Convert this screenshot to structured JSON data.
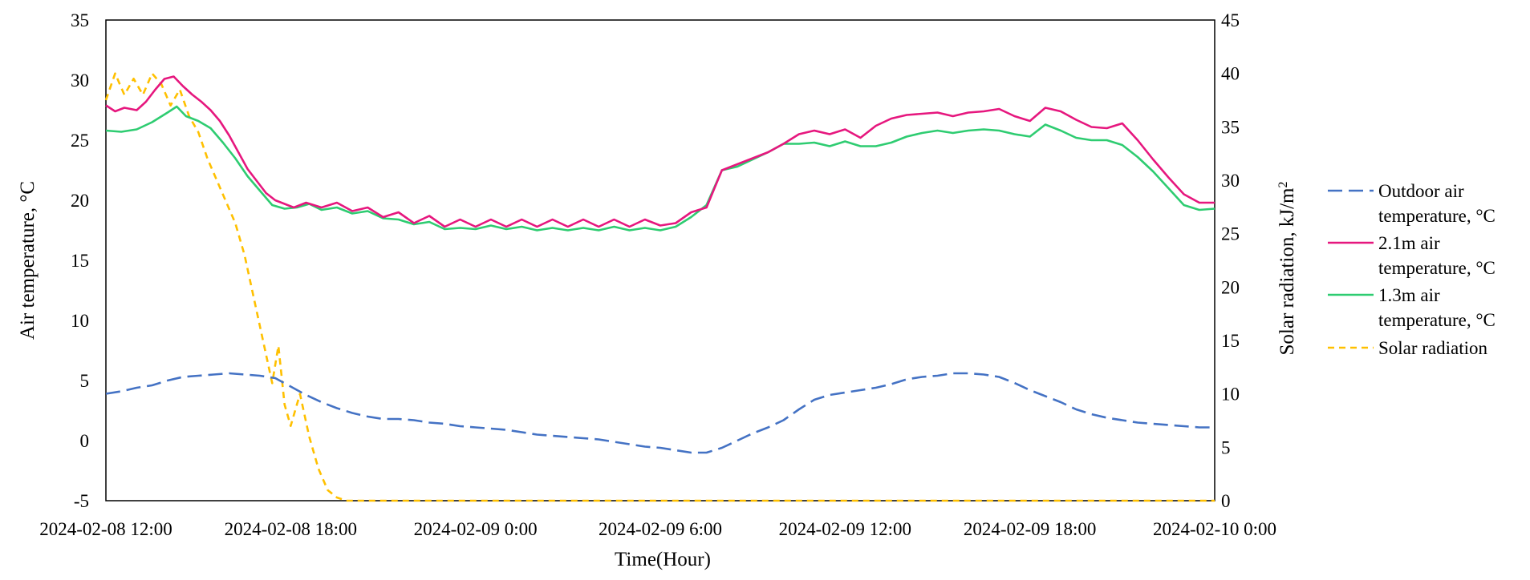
{
  "chart_data": {
    "type": "line",
    "xlabel": "Time(Hour)",
    "ylabel_left": "Air temperature, °C",
    "ylabel_right_prefix": "Solar radiation, kJ/m",
    "ylabel_right_sup": "2",
    "ylim_left": [
      -5,
      35
    ],
    "ylim_right": [
      0,
      45
    ],
    "xlim_hours": [
      0,
      36
    ],
    "x_ticks": [
      "2024-02-08 12:00",
      "2024-02-08 18:00",
      "2024-02-09 0:00",
      "2024-02-09 6:00",
      "2024-02-09 12:00",
      "2024-02-09 18:00",
      "2024-02-10 0:00"
    ],
    "y_ticks_left": [
      "35",
      "30",
      "25",
      "20",
      "15",
      "10",
      "5",
      "0",
      "-5"
    ],
    "y_ticks_right": [
      "45",
      "40",
      "35",
      "30",
      "25",
      "20",
      "15",
      "10",
      "5",
      "0"
    ],
    "legend_position": "right",
    "series": [
      {
        "name_lines": [
          "Outdoor air",
          "temperature, °C"
        ],
        "axis": "left",
        "color": "#4472C4",
        "style": "long-dash",
        "points": [
          [
            0,
            3.9
          ],
          [
            0.5,
            4.1
          ],
          [
            1,
            4.4
          ],
          [
            1.5,
            4.6
          ],
          [
            2,
            5.0
          ],
          [
            2.5,
            5.3
          ],
          [
            3,
            5.4
          ],
          [
            3.5,
            5.5
          ],
          [
            4,
            5.6
          ],
          [
            4.5,
            5.5
          ],
          [
            5,
            5.4
          ],
          [
            5.5,
            5.2
          ],
          [
            6,
            4.5
          ],
          [
            6.5,
            3.8
          ],
          [
            7,
            3.2
          ],
          [
            7.5,
            2.7
          ],
          [
            8,
            2.3
          ],
          [
            8.5,
            2.0
          ],
          [
            9,
            1.8
          ],
          [
            9.5,
            1.8
          ],
          [
            10,
            1.7
          ],
          [
            10.5,
            1.5
          ],
          [
            11,
            1.4
          ],
          [
            11.5,
            1.2
          ],
          [
            12,
            1.1
          ],
          [
            12.5,
            1.0
          ],
          [
            13,
            0.9
          ],
          [
            13.5,
            0.7
          ],
          [
            14,
            0.5
          ],
          [
            14.5,
            0.4
          ],
          [
            15,
            0.3
          ],
          [
            15.5,
            0.2
          ],
          [
            16,
            0.1
          ],
          [
            16.5,
            -0.1
          ],
          [
            17,
            -0.3
          ],
          [
            17.5,
            -0.5
          ],
          [
            18,
            -0.6
          ],
          [
            18.5,
            -0.8
          ],
          [
            19,
            -1.0
          ],
          [
            19.5,
            -1.0
          ],
          [
            20,
            -0.6
          ],
          [
            20.5,
            0.0
          ],
          [
            21,
            0.6
          ],
          [
            21.5,
            1.1
          ],
          [
            22,
            1.7
          ],
          [
            22.5,
            2.6
          ],
          [
            23,
            3.4
          ],
          [
            23.5,
            3.8
          ],
          [
            24,
            4.0
          ],
          [
            24.5,
            4.2
          ],
          [
            25,
            4.4
          ],
          [
            25.5,
            4.7
          ],
          [
            26,
            5.1
          ],
          [
            26.5,
            5.3
          ],
          [
            27,
            5.4
          ],
          [
            27.5,
            5.6
          ],
          [
            28,
            5.6
          ],
          [
            28.5,
            5.5
          ],
          [
            29,
            5.3
          ],
          [
            29.5,
            4.8
          ],
          [
            30,
            4.2
          ],
          [
            30.5,
            3.7
          ],
          [
            31,
            3.2
          ],
          [
            31.5,
            2.6
          ],
          [
            32,
            2.2
          ],
          [
            32.5,
            1.9
          ],
          [
            33,
            1.7
          ],
          [
            33.5,
            1.5
          ],
          [
            34,
            1.4
          ],
          [
            34.5,
            1.3
          ],
          [
            35,
            1.2
          ],
          [
            35.5,
            1.1
          ],
          [
            36,
            1.1
          ]
        ]
      },
      {
        "name_lines": [
          "2.1m air",
          "temperature, °C"
        ],
        "axis": "left",
        "color": "#E6177E",
        "style": "solid",
        "points": [
          [
            0,
            27.9
          ],
          [
            0.3,
            27.4
          ],
          [
            0.6,
            27.7
          ],
          [
            1,
            27.5
          ],
          [
            1.3,
            28.2
          ],
          [
            1.6,
            29.2
          ],
          [
            1.9,
            30.1
          ],
          [
            2.2,
            30.3
          ],
          [
            2.5,
            29.5
          ],
          [
            2.8,
            28.8
          ],
          [
            3.1,
            28.2
          ],
          [
            3.4,
            27.5
          ],
          [
            3.7,
            26.6
          ],
          [
            4,
            25.4
          ],
          [
            4.3,
            24.0
          ],
          [
            4.6,
            22.6
          ],
          [
            4.9,
            21.6
          ],
          [
            5.2,
            20.6
          ],
          [
            5.5,
            20.0
          ],
          [
            5.8,
            19.7
          ],
          [
            6.1,
            19.4
          ],
          [
            6.5,
            19.8
          ],
          [
            7,
            19.4
          ],
          [
            7.5,
            19.8
          ],
          [
            8,
            19.1
          ],
          [
            8.5,
            19.4
          ],
          [
            9,
            18.6
          ],
          [
            9.5,
            19.0
          ],
          [
            10,
            18.1
          ],
          [
            10.5,
            18.7
          ],
          [
            11,
            17.8
          ],
          [
            11.5,
            18.4
          ],
          [
            12,
            17.8
          ],
          [
            12.5,
            18.4
          ],
          [
            13,
            17.8
          ],
          [
            13.5,
            18.4
          ],
          [
            14,
            17.8
          ],
          [
            14.5,
            18.4
          ],
          [
            15,
            17.8
          ],
          [
            15.5,
            18.4
          ],
          [
            16,
            17.8
          ],
          [
            16.5,
            18.4
          ],
          [
            17,
            17.8
          ],
          [
            17.5,
            18.4
          ],
          [
            18,
            17.9
          ],
          [
            18.5,
            18.1
          ],
          [
            19,
            19.0
          ],
          [
            19.5,
            19.4
          ],
          [
            20,
            22.5
          ],
          [
            20.5,
            23.0
          ],
          [
            21,
            23.5
          ],
          [
            21.5,
            24.0
          ],
          [
            22,
            24.7
          ],
          [
            22.5,
            25.5
          ],
          [
            23,
            25.8
          ],
          [
            23.5,
            25.5
          ],
          [
            24,
            25.9
          ],
          [
            24.5,
            25.2
          ],
          [
            25,
            26.2
          ],
          [
            25.5,
            26.8
          ],
          [
            26,
            27.1
          ],
          [
            26.5,
            27.2
          ],
          [
            27,
            27.3
          ],
          [
            27.5,
            27.0
          ],
          [
            28,
            27.3
          ],
          [
            28.5,
            27.4
          ],
          [
            29,
            27.6
          ],
          [
            29.5,
            27.0
          ],
          [
            30,
            26.6
          ],
          [
            30.5,
            27.7
          ],
          [
            31,
            27.4
          ],
          [
            31.5,
            26.7
          ],
          [
            32,
            26.1
          ],
          [
            32.5,
            26.0
          ],
          [
            33,
            26.4
          ],
          [
            33.5,
            25.0
          ],
          [
            34,
            23.4
          ],
          [
            34.5,
            21.9
          ],
          [
            35,
            20.5
          ],
          [
            35.5,
            19.8
          ],
          [
            36,
            19.8
          ]
        ]
      },
      {
        "name_lines": [
          "1.3m air",
          "temperature, °C"
        ],
        "axis": "left",
        "color": "#2ECC71",
        "style": "solid",
        "points": [
          [
            0,
            25.8
          ],
          [
            0.5,
            25.7
          ],
          [
            1,
            25.9
          ],
          [
            1.5,
            26.5
          ],
          [
            2,
            27.3
          ],
          [
            2.3,
            27.8
          ],
          [
            2.6,
            27.0
          ],
          [
            3,
            26.6
          ],
          [
            3.4,
            26.0
          ],
          [
            3.8,
            24.8
          ],
          [
            4.2,
            23.5
          ],
          [
            4.6,
            22.0
          ],
          [
            5,
            20.8
          ],
          [
            5.4,
            19.6
          ],
          [
            5.8,
            19.3
          ],
          [
            6.2,
            19.4
          ],
          [
            6.6,
            19.7
          ],
          [
            7,
            19.2
          ],
          [
            7.5,
            19.4
          ],
          [
            8,
            18.9
          ],
          [
            8.5,
            19.1
          ],
          [
            9,
            18.5
          ],
          [
            9.5,
            18.4
          ],
          [
            10,
            18.0
          ],
          [
            10.5,
            18.2
          ],
          [
            11,
            17.6
          ],
          [
            11.5,
            17.7
          ],
          [
            12,
            17.6
          ],
          [
            12.5,
            17.9
          ],
          [
            13,
            17.6
          ],
          [
            13.5,
            17.8
          ],
          [
            14,
            17.5
          ],
          [
            14.5,
            17.7
          ],
          [
            15,
            17.5
          ],
          [
            15.5,
            17.7
          ],
          [
            16,
            17.5
          ],
          [
            16.5,
            17.8
          ],
          [
            17,
            17.5
          ],
          [
            17.5,
            17.7
          ],
          [
            18,
            17.5
          ],
          [
            18.5,
            17.8
          ],
          [
            19,
            18.6
          ],
          [
            19.5,
            19.6
          ],
          [
            20,
            22.5
          ],
          [
            20.5,
            22.8
          ],
          [
            21,
            23.4
          ],
          [
            21.5,
            24.0
          ],
          [
            22,
            24.7
          ],
          [
            22.5,
            24.7
          ],
          [
            23,
            24.8
          ],
          [
            23.5,
            24.5
          ],
          [
            24,
            24.9
          ],
          [
            24.5,
            24.5
          ],
          [
            25,
            24.5
          ],
          [
            25.5,
            24.8
          ],
          [
            26,
            25.3
          ],
          [
            26.5,
            25.6
          ],
          [
            27,
            25.8
          ],
          [
            27.5,
            25.6
          ],
          [
            28,
            25.8
          ],
          [
            28.5,
            25.9
          ],
          [
            29,
            25.8
          ],
          [
            29.5,
            25.5
          ],
          [
            30,
            25.3
          ],
          [
            30.5,
            26.3
          ],
          [
            31,
            25.8
          ],
          [
            31.5,
            25.2
          ],
          [
            32,
            25.0
          ],
          [
            32.5,
            25.0
          ],
          [
            33,
            24.6
          ],
          [
            33.5,
            23.6
          ],
          [
            34,
            22.4
          ],
          [
            34.5,
            21.0
          ],
          [
            35,
            19.6
          ],
          [
            35.5,
            19.2
          ],
          [
            36,
            19.3
          ]
        ]
      },
      {
        "name_lines": [
          "Solar radiation"
        ],
        "axis": "right",
        "color": "#FFC000",
        "style": "short-dash",
        "points": [
          [
            0,
            37.5
          ],
          [
            0.3,
            40.0
          ],
          [
            0.6,
            38.0
          ],
          [
            0.9,
            39.5
          ],
          [
            1.2,
            38.0
          ],
          [
            1.5,
            40.0
          ],
          [
            1.8,
            39.0
          ],
          [
            2.1,
            37.0
          ],
          [
            2.4,
            38.5
          ],
          [
            2.7,
            36.0
          ],
          [
            3,
            34.5
          ],
          [
            3.3,
            32.0
          ],
          [
            3.6,
            30.0
          ],
          [
            3.9,
            28.0
          ],
          [
            4.2,
            26.0
          ],
          [
            4.5,
            23.0
          ],
          [
            4.8,
            19.0
          ],
          [
            5.1,
            15.0
          ],
          [
            5.4,
            11.0
          ],
          [
            5.6,
            14.5
          ],
          [
            5.8,
            9.0
          ],
          [
            6,
            7.0
          ],
          [
            6.3,
            10.0
          ],
          [
            6.6,
            6.0
          ],
          [
            6.9,
            3.0
          ],
          [
            7.2,
            1.0
          ],
          [
            7.5,
            0.3
          ],
          [
            7.8,
            0
          ],
          [
            8.1,
            0
          ],
          [
            36,
            0
          ]
        ]
      }
    ]
  }
}
